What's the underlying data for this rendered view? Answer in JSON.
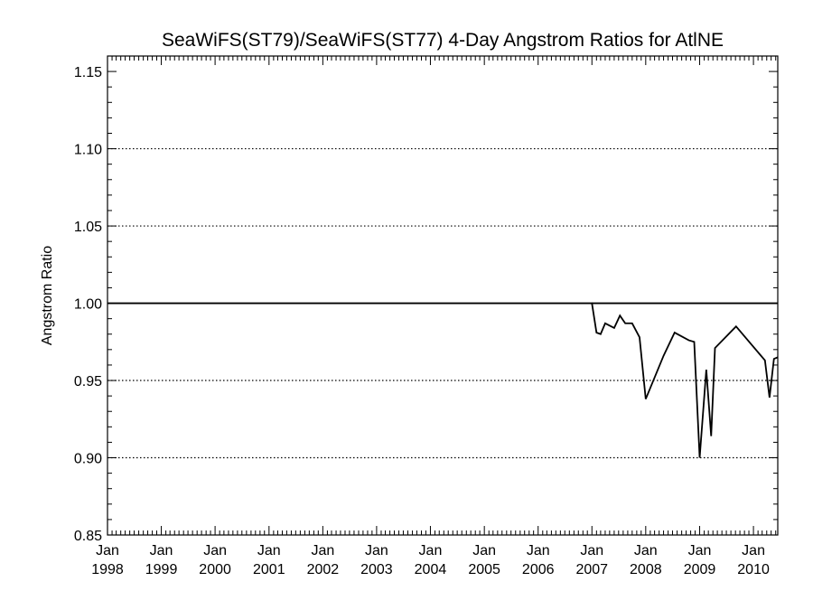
{
  "chart_data": {
    "type": "line",
    "title": "SeaWiFS(ST79)/SeaWiFS(ST77) 4-Day Angstrom Ratios for AtlNE",
    "xlabel": "",
    "ylabel": "Angstrom Ratio",
    "ylim": [
      0.85,
      1.16
    ],
    "xlim": [
      "1998-01-01",
      "2010-06-15"
    ],
    "yticks": [
      "0.85",
      "0.90",
      "0.95",
      "1.00",
      "1.05",
      "1.10",
      "1.15"
    ],
    "xticks": [
      {
        "month": "Jan",
        "year": "1998",
        "date": "1998-01-01"
      },
      {
        "month": "Jan",
        "year": "1999",
        "date": "1999-01-01"
      },
      {
        "month": "Jan",
        "year": "2000",
        "date": "2000-01-01"
      },
      {
        "month": "Jan",
        "year": "2001",
        "date": "2001-01-01"
      },
      {
        "month": "Jan",
        "year": "2002",
        "date": "2002-01-01"
      },
      {
        "month": "Jan",
        "year": "2003",
        "date": "2003-01-01"
      },
      {
        "month": "Jan",
        "year": "2004",
        "date": "2004-01-01"
      },
      {
        "month": "Jan",
        "year": "2005",
        "date": "2005-01-01"
      },
      {
        "month": "Jan",
        "year": "2006",
        "date": "2006-01-01"
      },
      {
        "month": "Jan",
        "year": "2007",
        "date": "2007-01-01"
      },
      {
        "month": "Jan",
        "year": "2008",
        "date": "2008-01-01"
      },
      {
        "month": "Jan",
        "year": "2009",
        "date": "2009-01-01"
      },
      {
        "month": "Jan",
        "year": "2010",
        "date": "2010-01-01"
      }
    ],
    "grid_y": [
      0.9,
      0.95,
      1.05,
      1.1
    ],
    "grid_style": "dotted",
    "series": [
      {
        "color": "#000000",
        "points": [
          {
            "x": "1998-01-01",
            "y": 1.0
          },
          {
            "x": "2007-01-01",
            "y": 1.0
          },
          {
            "x": "2007-02-01",
            "y": 0.981
          },
          {
            "x": "2007-03-01",
            "y": 0.98
          },
          {
            "x": "2007-04-01",
            "y": 0.987
          },
          {
            "x": "2007-06-01",
            "y": 0.984
          },
          {
            "x": "2007-07-10",
            "y": 0.992
          },
          {
            "x": "2007-08-15",
            "y": 0.987
          },
          {
            "x": "2007-10-01",
            "y": 0.987
          },
          {
            "x": "2007-11-20",
            "y": 0.978
          },
          {
            "x": "2008-01-01",
            "y": 0.938
          },
          {
            "x": "2008-05-01",
            "y": 0.966
          },
          {
            "x": "2008-07-15",
            "y": 0.981
          },
          {
            "x": "2008-10-20",
            "y": 0.976
          },
          {
            "x": "2008-11-25",
            "y": 0.975
          },
          {
            "x": "2009-01-01",
            "y": 0.9
          },
          {
            "x": "2009-02-15",
            "y": 0.957
          },
          {
            "x": "2009-03-20",
            "y": 0.914
          },
          {
            "x": "2009-04-15",
            "y": 0.971
          },
          {
            "x": "2009-09-05",
            "y": 0.985
          },
          {
            "x": "2010-03-20",
            "y": 0.963
          },
          {
            "x": "2010-04-20",
            "y": 0.939
          },
          {
            "x": "2010-05-20",
            "y": 0.964
          },
          {
            "x": "2010-06-15",
            "y": 0.965
          }
        ]
      },
      {
        "color": "#000000",
        "points": [
          {
            "x": "2007-01-01",
            "y": 1.0
          },
          {
            "x": "2010-06-15",
            "y": 1.0
          }
        ]
      }
    ]
  }
}
